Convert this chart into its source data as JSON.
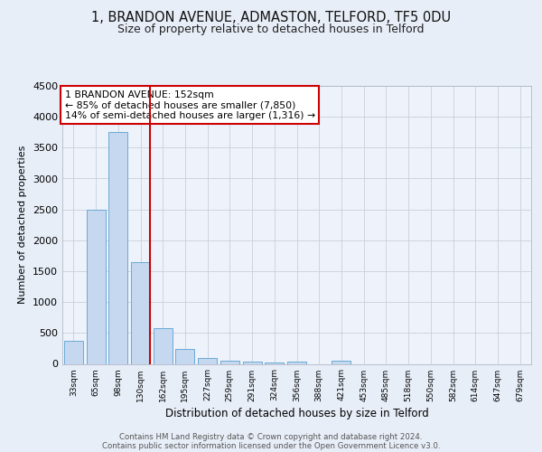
{
  "title1": "1, BRANDON AVENUE, ADMASTON, TELFORD, TF5 0DU",
  "title2": "Size of property relative to detached houses in Telford",
  "xlabel": "Distribution of detached houses by size in Telford",
  "ylabel": "Number of detached properties",
  "categories": [
    "33sqm",
    "65sqm",
    "98sqm",
    "130sqm",
    "162sqm",
    "195sqm",
    "227sqm",
    "259sqm",
    "291sqm",
    "324sqm",
    "356sqm",
    "388sqm",
    "421sqm",
    "453sqm",
    "485sqm",
    "518sqm",
    "550sqm",
    "582sqm",
    "614sqm",
    "647sqm",
    "679sqm"
  ],
  "values": [
    380,
    2500,
    3750,
    1650,
    575,
    240,
    100,
    55,
    30,
    15,
    40,
    0,
    50,
    0,
    0,
    0,
    0,
    0,
    0,
    0,
    0
  ],
  "bar_color": "#c5d8f0",
  "bar_edge_color": "#6aaad4",
  "annotation_text": "1 BRANDON AVENUE: 152sqm\n← 85% of detached houses are smaller (7,850)\n14% of semi-detached houses are larger (1,316) →",
  "annotation_box_color": "#ffffff",
  "annotation_box_edge": "#cc0000",
  "ylim": [
    0,
    4500
  ],
  "yticks": [
    0,
    500,
    1000,
    1500,
    2000,
    2500,
    3000,
    3500,
    4000,
    4500
  ],
  "footer1": "Contains HM Land Registry data © Crown copyright and database right 2024.",
  "footer2": "Contains public sector information licensed under the Open Government Licence v3.0.",
  "bg_color": "#e8eef8",
  "plot_bg_color": "#eef3fb",
  "grid_color": "#c8d0dc",
  "title1_fontsize": 10.5,
  "title2_fontsize": 9,
  "red_line_color": "#cc0000",
  "red_line_x": 3.42
}
